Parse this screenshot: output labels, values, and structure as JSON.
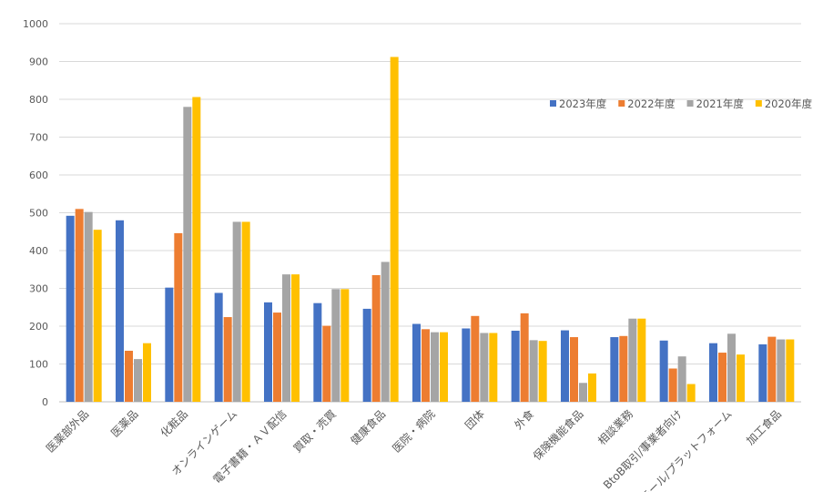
{
  "chart_data": {
    "type": "bar",
    "title": "",
    "xlabel": "",
    "ylabel": "",
    "ylim": [
      0,
      1000
    ],
    "yticks": [
      0,
      100,
      200,
      300,
      400,
      500,
      600,
      700,
      800,
      900,
      1000
    ],
    "grid": true,
    "legend_position": "right",
    "categories": [
      "医薬部外品",
      "医薬品",
      "化粧品",
      "オンラインゲーム",
      "電子書籍・ＡＶ配信",
      "買取・売買",
      "健康食品",
      "医院・病院",
      "団体",
      "外食",
      "保険機能食品",
      "相談業務",
      "BtoB取引/事業者向け",
      "モール/プラットフォーム",
      "加工食品"
    ],
    "series": [
      {
        "name": "2023年度",
        "color": "#4472C4",
        "values": [
          492,
          480,
          302,
          288,
          263,
          261,
          246,
          206,
          194,
          188,
          189,
          171,
          162,
          155,
          152
        ]
      },
      {
        "name": "2022年度",
        "color": "#ED7D31",
        "values": [
          510,
          135,
          446,
          224,
          236,
          201,
          335,
          192,
          227,
          234,
          171,
          174,
          88,
          130,
          172
        ]
      },
      {
        "name": "2021年度",
        "color": "#A5A5A5",
        "values": [
          502,
          113,
          780,
          476,
          337,
          298,
          370,
          184,
          182,
          163,
          50,
          220,
          120,
          180,
          165
        ]
      },
      {
        "name": "2020年度",
        "color": "#FFC000",
        "values": [
          455,
          155,
          806,
          476,
          337,
          298,
          912,
          184,
          182,
          161,
          75,
          220,
          47,
          125,
          165
        ]
      }
    ]
  }
}
